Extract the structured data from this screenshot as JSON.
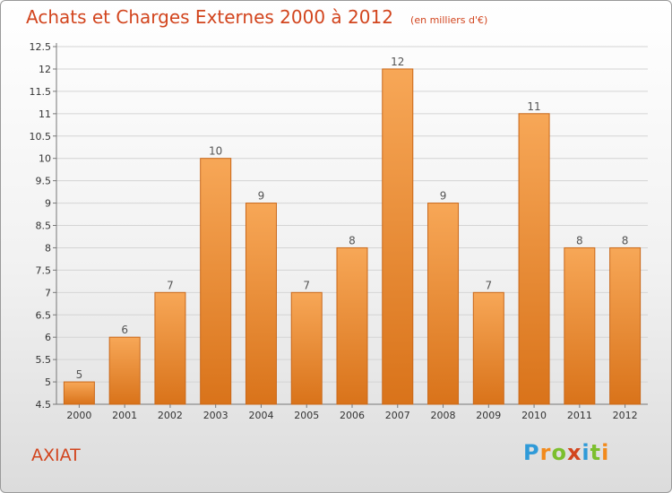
{
  "header": {
    "title": "Achats et Charges Externes 2000 à 2012",
    "subtitle": "(en milliers d'€)"
  },
  "commune": "AXIAT",
  "logo": {
    "text": "Proxiti",
    "letters": [
      {
        "ch": "P",
        "color": "#2f9ad8"
      },
      {
        "ch": "r",
        "color": "#f28a1c"
      },
      {
        "ch": "o",
        "color": "#7cbf2e"
      },
      {
        "ch": "x",
        "color": "#d2451e"
      },
      {
        "ch": "i",
        "color": "#2f9ad8"
      },
      {
        "ch": "t",
        "color": "#7cbf2e"
      },
      {
        "ch": "i",
        "color": "#f28a1c"
      }
    ]
  },
  "colors": {
    "bar_top": "#f7a757",
    "bar_bottom": "#d9731a",
    "bar_edge": "#c9681a",
    "title": "#d2451e"
  },
  "chart_data": {
    "type": "bar",
    "title": "Achats et Charges Externes 2000 à 2012",
    "subtitle": "(en milliers d'€)",
    "categories": [
      "2000",
      "2001",
      "2002",
      "2003",
      "2004",
      "2005",
      "2006",
      "2007",
      "2008",
      "2009",
      "2010",
      "2011",
      "2012"
    ],
    "values": [
      5,
      6,
      7,
      10,
      9,
      7,
      8,
      12,
      9,
      7,
      11,
      8,
      8
    ],
    "ylim": [
      4.5,
      12.5
    ],
    "yticks": [
      "4.5",
      "5",
      "5.5",
      "6",
      "6.5",
      "7",
      "7.5",
      "8",
      "8.5",
      "9",
      "9.5",
      "10",
      "10.5",
      "11",
      "11.5",
      "12",
      "12.5"
    ],
    "grid": true
  }
}
